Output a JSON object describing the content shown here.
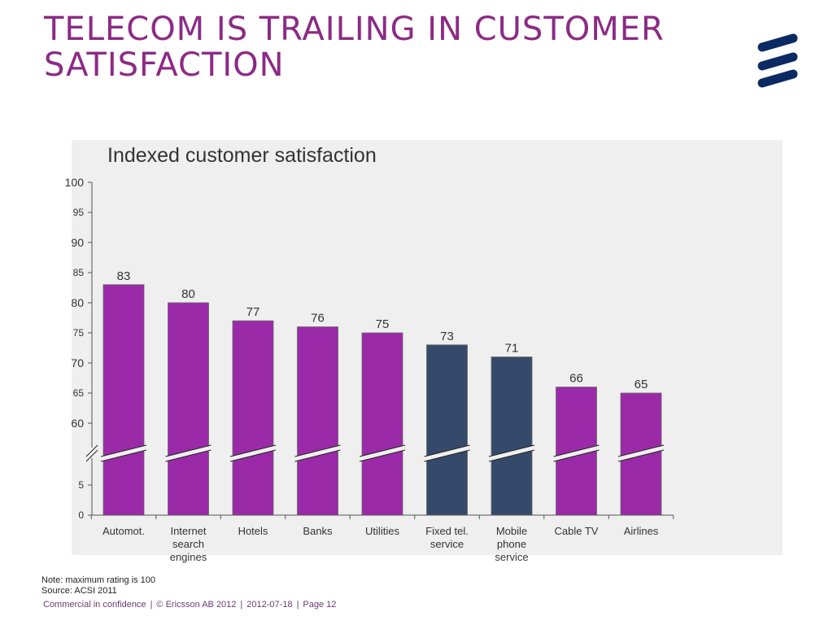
{
  "slide": {
    "title": "TELECOM IS TRAILING IN CUSTOMER SATISFACTION"
  },
  "colors": {
    "title": "#8c2a85",
    "highlight_bar": "#9b2aa8",
    "telecom_bar": "#354a6a",
    "panel_bg": "#efefef",
    "logo": "#0b2a63"
  },
  "chart_data": {
    "type": "bar",
    "title": "Indexed customer satisfaction",
    "xlabel": "",
    "ylabel": "",
    "categories": [
      [
        "Automot."
      ],
      [
        "Internet",
        "search",
        "engines"
      ],
      [
        "Hotels"
      ],
      [
        "Banks"
      ],
      [
        "Utilities"
      ],
      [
        "Fixed tel.",
        "service"
      ],
      [
        "Mobile",
        "phone",
        "service"
      ],
      [
        "Cable TV"
      ],
      [
        "Airlines"
      ]
    ],
    "values": [
      83,
      80,
      77,
      76,
      75,
      73,
      71,
      66,
      65
    ],
    "bar_groups": [
      "other",
      "other",
      "other",
      "other",
      "other",
      "telecom",
      "telecom",
      "other",
      "other"
    ],
    "y_axis_break": {
      "lower_segment": [
        0,
        5
      ],
      "upper_segment": [
        60,
        100
      ]
    },
    "y_ticks_upper": [
      "100",
      "95",
      "90",
      "85",
      "80",
      "75",
      "70",
      "65",
      "60"
    ],
    "y_ticks_lower": [
      "5",
      "0"
    ],
    "grid": false,
    "legend": "none"
  },
  "notes": {
    "note": "Note: maximum rating is 100",
    "source": "Source: ACSI 2011"
  },
  "footer": {
    "confidentiality": "Commercial in confidence",
    "copyright": "© Ericsson AB 2012",
    "date": "2012-07-18",
    "page": "Page 12"
  }
}
